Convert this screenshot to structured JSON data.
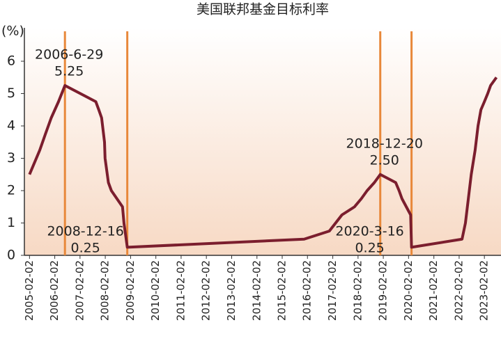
{
  "chart_data": {
    "type": "line",
    "title": "美国联邦基金目标利率",
    "ylabel": "(%)",
    "xlim": [
      "2004-11-20",
      "2023-09-30"
    ],
    "xticks": [
      "2005-02-02",
      "2006-02-02",
      "2007-02-02",
      "2008-02-02",
      "2009-02-02",
      "2010-02-02",
      "2011-02-02",
      "2012-02-02",
      "2013-02-02",
      "2014-02-02",
      "2015-02-02",
      "2016-02-02",
      "2017-02-02",
      "2018-02-02",
      "2019-02-02",
      "2020-02-02",
      "2021-02-02",
      "2022-02-02",
      "2023-02-02"
    ],
    "ylim": [
      0,
      7
    ],
    "yticks": [
      0,
      1,
      2,
      3,
      4,
      5,
      6
    ],
    "grid": false,
    "series": [
      {
        "color": "#7b1e2e",
        "x": [
          "2005-02-02",
          "2005-06-30",
          "2005-09-20",
          "2005-12-13",
          "2006-03-28",
          "2006-06-29",
          "2007-09-18",
          "2007-10-31",
          "2007-12-11",
          "2008-01-22",
          "2008-01-30",
          "2008-03-18",
          "2008-04-30",
          "2008-10-08",
          "2008-10-29",
          "2008-12-16",
          "2015-12-16",
          "2016-12-14",
          "2017-03-15",
          "2017-06-14",
          "2017-12-13",
          "2018-03-21",
          "2018-06-13",
          "2018-09-26",
          "2018-12-20",
          "2019-07-31",
          "2019-09-18",
          "2019-10-30",
          "2020-03-03",
          "2020-03-16",
          "2022-03-16",
          "2022-05-04",
          "2022-06-15",
          "2022-07-27",
          "2022-09-21",
          "2022-11-02",
          "2022-12-14",
          "2023-02-02",
          "2023-03-22",
          "2023-05-03",
          "2023-07-26"
        ],
        "values": [
          2.5,
          3.25,
          3.75,
          4.25,
          4.75,
          5.25,
          4.75,
          4.5,
          4.25,
          3.5,
          3.0,
          2.25,
          2.0,
          1.5,
          1.0,
          0.25,
          0.5,
          0.75,
          1.0,
          1.25,
          1.5,
          1.75,
          2.0,
          2.25,
          2.5,
          2.25,
          2.0,
          1.75,
          1.25,
          0.25,
          0.5,
          1.0,
          1.75,
          2.5,
          3.25,
          4.0,
          4.5,
          4.75,
          5.0,
          5.25,
          5.5
        ]
      }
    ],
    "annotations": [
      {
        "x": "2006-06-29",
        "text": "2006-6-29",
        "y": 5.25,
        "color": "#e8883a"
      },
      {
        "x": "2008-12-16",
        "text": "2008-12-16",
        "y": 0.25,
        "color": "#e8883a"
      },
      {
        "x": "2018-12-20",
        "text": "2018-12-20",
        "y": 2.5,
        "y_label": "2.50",
        "color": "#e8883a"
      },
      {
        "x": "2020-03-16",
        "text": "2020-3-16",
        "y": 0.25,
        "color": "#e8883a"
      }
    ]
  }
}
